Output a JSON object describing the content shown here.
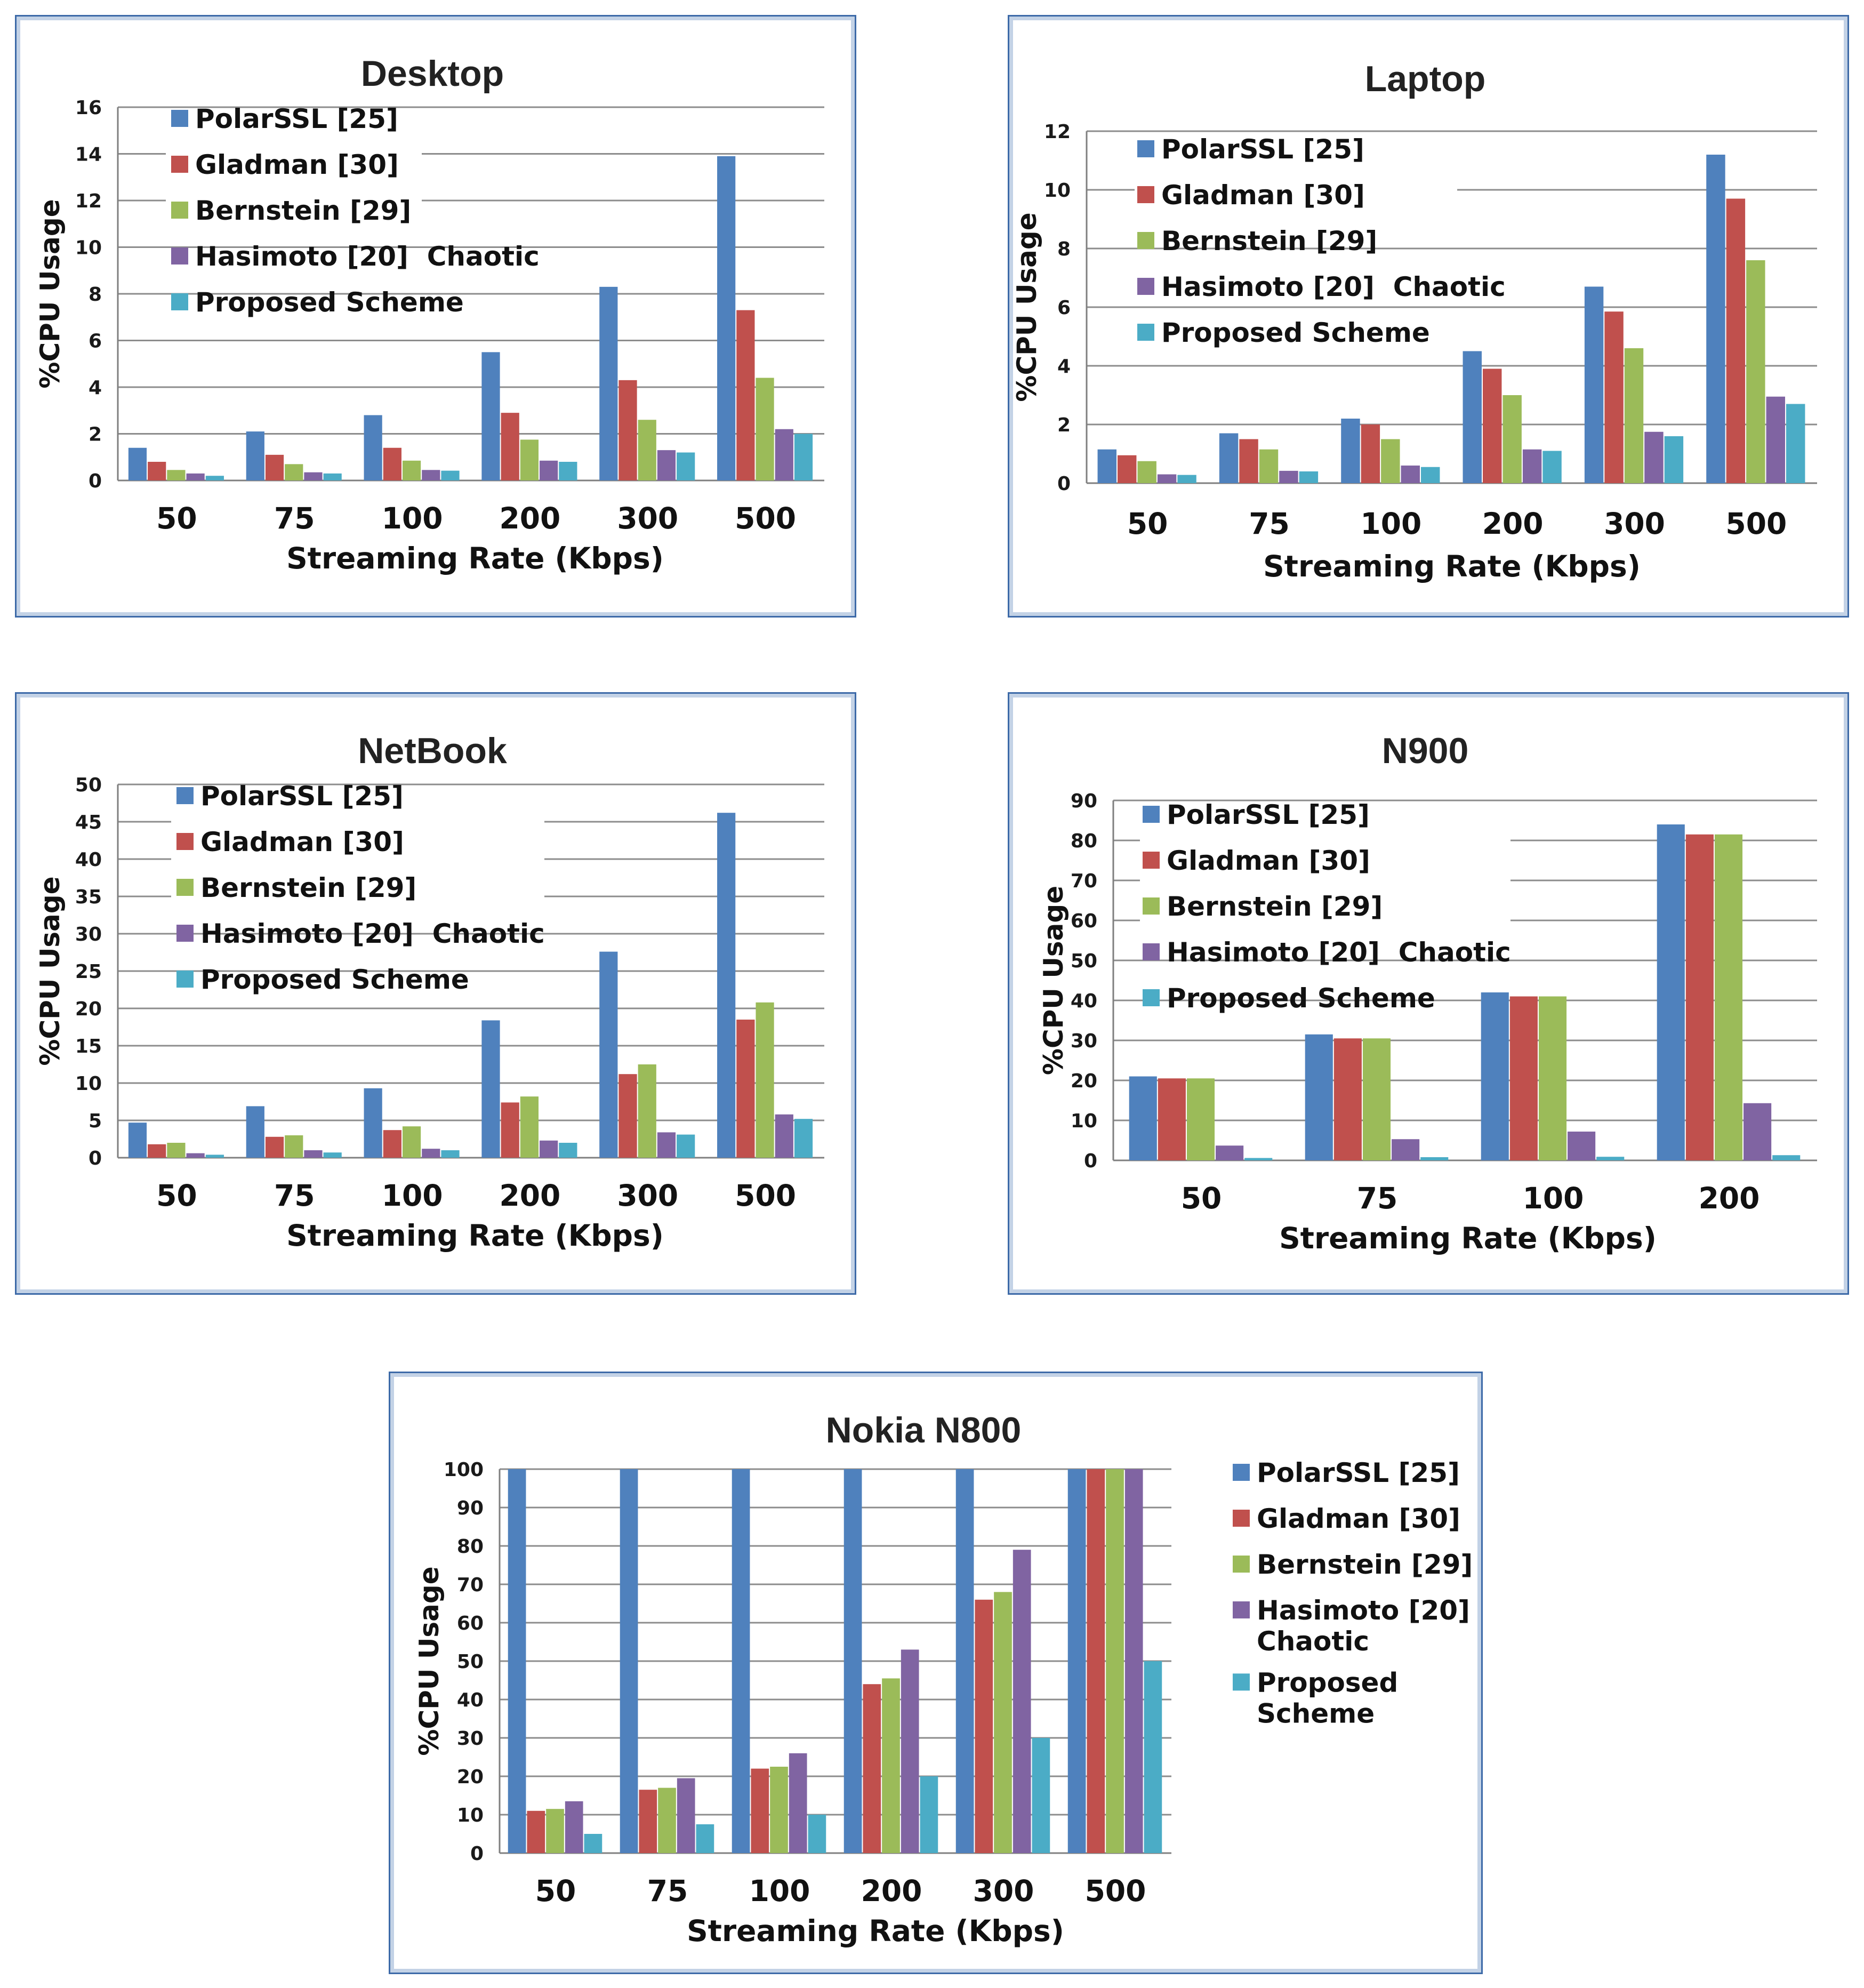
{
  "colors": {
    "PolarSSL [25]": "#4f81bd",
    "Gladman [30]": "#c0504d",
    "Bernstein [29]": "#9bbb59",
    "Hasimoto [20]  Chaotic": "#8064a2",
    "Proposed Scheme": "#4bacc6"
  },
  "chart_data": [
    {
      "type": "bar",
      "title": "Desktop",
      "xlabel": "Streaming Rate (Kbps)",
      "ylabel": "%CPU Usage",
      "ylim": [
        0,
        16
      ],
      "yticks": [
        0,
        2,
        4,
        6,
        8,
        10,
        12,
        14,
        16
      ],
      "grid": true,
      "legend_position": "top-left",
      "categories": [
        "50",
        "75",
        "100",
        "200",
        "300",
        "500"
      ],
      "series": [
        {
          "name": "PolarSSL [25]",
          "legend_lines": [
            "PolarSSL [25]"
          ],
          "values": [
            1.4,
            2.1,
            2.8,
            5.5,
            8.3,
            13.9
          ]
        },
        {
          "name": "Gladman [30]",
          "legend_lines": [
            "Gladman [30]"
          ],
          "values": [
            0.8,
            1.1,
            1.4,
            2.9,
            4.3,
            7.3
          ]
        },
        {
          "name": "Bernstein [29]",
          "legend_lines": [
            "Bernstein [29]"
          ],
          "values": [
            0.45,
            0.7,
            0.85,
            1.75,
            2.6,
            4.4
          ]
        },
        {
          "name": "Hasimoto [20]  Chaotic",
          "legend_lines": [
            "Hasimoto [20]  Chaotic"
          ],
          "values": [
            0.3,
            0.35,
            0.45,
            0.85,
            1.3,
            2.2
          ]
        },
        {
          "name": "Proposed Scheme",
          "legend_lines": [
            "Proposed Scheme"
          ],
          "values": [
            0.2,
            0.3,
            0.42,
            0.8,
            1.2,
            2.0
          ]
        }
      ]
    },
    {
      "type": "bar",
      "title": "Laptop",
      "xlabel": "Streaming Rate (Kbps)",
      "ylabel": "%CPU Usage",
      "ylim": [
        0,
        12
      ],
      "yticks": [
        0,
        2,
        4,
        6,
        8,
        10,
        12
      ],
      "grid": true,
      "legend_position": "top-left",
      "categories": [
        "50",
        "75",
        "100",
        "200",
        "300",
        "500"
      ],
      "series": [
        {
          "name": "PolarSSL [25]",
          "legend_lines": [
            "PolarSSL [25]"
          ],
          "values": [
            1.15,
            1.7,
            2.2,
            4.5,
            6.7,
            11.2
          ]
        },
        {
          "name": "Gladman [30]",
          "legend_lines": [
            "Gladman [30]"
          ],
          "values": [
            0.95,
            1.5,
            2.0,
            3.9,
            5.85,
            9.7
          ]
        },
        {
          "name": "Bernstein [29]",
          "legend_lines": [
            "Bernstein [29]"
          ],
          "values": [
            0.75,
            1.15,
            1.5,
            3.0,
            4.6,
            7.6
          ]
        },
        {
          "name": "Hasimoto [20]  Chaotic",
          "legend_lines": [
            "Hasimoto [20]  Chaotic"
          ],
          "values": [
            0.3,
            0.42,
            0.6,
            1.15,
            1.75,
            2.95
          ]
        },
        {
          "name": "Proposed Scheme",
          "legend_lines": [
            "Proposed Scheme"
          ],
          "values": [
            0.28,
            0.4,
            0.55,
            1.1,
            1.6,
            2.7
          ]
        }
      ]
    },
    {
      "type": "bar",
      "title": "NetBook",
      "xlabel": "Streaming Rate (Kbps)",
      "ylabel": "%CPU Usage",
      "ylim": [
        0,
        50
      ],
      "yticks": [
        0,
        5,
        10,
        15,
        20,
        25,
        30,
        35,
        40,
        45,
        50
      ],
      "grid": true,
      "legend_position": "top-left",
      "categories": [
        "50",
        "75",
        "100",
        "200",
        "300",
        "500"
      ],
      "series": [
        {
          "name": "PolarSSL [25]",
          "legend_lines": [
            "PolarSSL [25]"
          ],
          "values": [
            4.7,
            6.9,
            9.3,
            18.4,
            27.6,
            46.2
          ]
        },
        {
          "name": "Gladman [30]",
          "legend_lines": [
            "Gladman [30]"
          ],
          "values": [
            1.8,
            2.8,
            3.7,
            7.4,
            11.2,
            18.5
          ]
        },
        {
          "name": "Bernstein [29]",
          "legend_lines": [
            "Bernstein [29]"
          ],
          "values": [
            2.0,
            3.0,
            4.2,
            8.2,
            12.5,
            20.8
          ]
        },
        {
          "name": "Hasimoto [20]  Chaotic",
          "legend_lines": [
            "Hasimoto [20]  Chaotic"
          ],
          "values": [
            0.6,
            1.0,
            1.2,
            2.3,
            3.4,
            5.8
          ]
        },
        {
          "name": "Proposed Scheme",
          "legend_lines": [
            "Proposed Scheme"
          ],
          "values": [
            0.4,
            0.7,
            1.0,
            2.0,
            3.1,
            5.2
          ]
        }
      ]
    },
    {
      "type": "bar",
      "title": "N900",
      "xlabel": "Streaming Rate (Kbps)",
      "ylabel": "%CPU Usage",
      "ylim": [
        0,
        90
      ],
      "yticks": [
        0,
        10,
        20,
        30,
        40,
        50,
        60,
        70,
        80,
        90
      ],
      "grid": true,
      "legend_position": "top-left",
      "categories": [
        "50",
        "75",
        "100",
        "200"
      ],
      "series": [
        {
          "name": "PolarSSL [25]",
          "legend_lines": [
            "PolarSSL [25]"
          ],
          "values": [
            21,
            31.5,
            42,
            84
          ]
        },
        {
          "name": "Gladman [30]",
          "legend_lines": [
            "Gladman [30]"
          ],
          "values": [
            20.5,
            30.5,
            41,
            81.5
          ]
        },
        {
          "name": "Bernstein [29]",
          "legend_lines": [
            "Bernstein [29]"
          ],
          "values": [
            20.5,
            30.5,
            41,
            81.5
          ]
        },
        {
          "name": "Hasimoto [20]  Chaotic",
          "legend_lines": [
            "Hasimoto [20]  Chaotic"
          ],
          "values": [
            3.7,
            5.3,
            7.2,
            14.3
          ]
        },
        {
          "name": "Proposed Scheme",
          "legend_lines": [
            "Proposed Scheme"
          ],
          "values": [
            0.6,
            0.8,
            0.9,
            1.3
          ]
        }
      ]
    },
    {
      "type": "bar",
      "title": "Nokia N800",
      "xlabel": "Streaming Rate (Kbps)",
      "ylabel": "%CPU Usage",
      "ylim": [
        0,
        100
      ],
      "yticks": [
        0,
        10,
        20,
        30,
        40,
        50,
        60,
        70,
        80,
        90,
        100
      ],
      "grid": true,
      "legend_position": "right",
      "categories": [
        "50",
        "75",
        "100",
        "200",
        "300",
        "500"
      ],
      "series": [
        {
          "name": "PolarSSL [25]",
          "legend_lines": [
            "PolarSSL [25]"
          ],
          "values": [
            100,
            100,
            100,
            100,
            100,
            100
          ]
        },
        {
          "name": "Gladman [30]",
          "legend_lines": [
            "Gladman [30]"
          ],
          "values": [
            11,
            16.5,
            22,
            44,
            66,
            100
          ]
        },
        {
          "name": "Bernstein [29]",
          "legend_lines": [
            "Bernstein [29]"
          ],
          "values": [
            11.5,
            17,
            22.5,
            45.5,
            68,
            100
          ]
        },
        {
          "name": "Hasimoto [20]  Chaotic",
          "legend_lines": [
            "Hasimoto [20]",
            "Chaotic"
          ],
          "values": [
            13.5,
            19.5,
            26,
            53,
            79,
            100
          ]
        },
        {
          "name": "Proposed Scheme",
          "legend_lines": [
            "Proposed",
            "Scheme"
          ],
          "values": [
            5,
            7.5,
            10,
            20,
            30,
            50
          ]
        }
      ]
    }
  ]
}
